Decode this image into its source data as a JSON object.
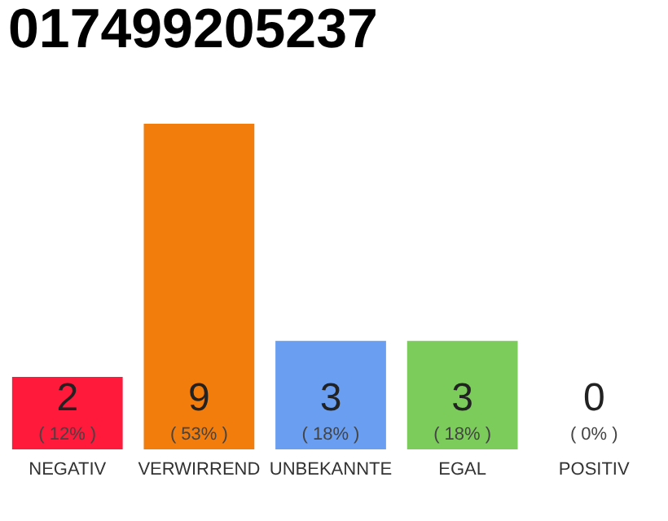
{
  "chart_data": {
    "type": "bar",
    "title": "017499205237",
    "categories": [
      "NEGATIV",
      "VERWIRREND",
      "UNBEKANNTE",
      "EGAL",
      "POSITIV"
    ],
    "values": [
      2,
      9,
      3,
      3,
      0
    ],
    "colors": [
      "#ff1a3c",
      "#f27d0c",
      "#6a9ef0",
      "#7ccc5c",
      "#d0d0d0"
    ],
    "data_labels": true,
    "annotations": [
      "( 12% )",
      "( 53% )",
      "( 18% )",
      "( 18% )",
      "( 0% )"
    ],
    "grid": false
  }
}
